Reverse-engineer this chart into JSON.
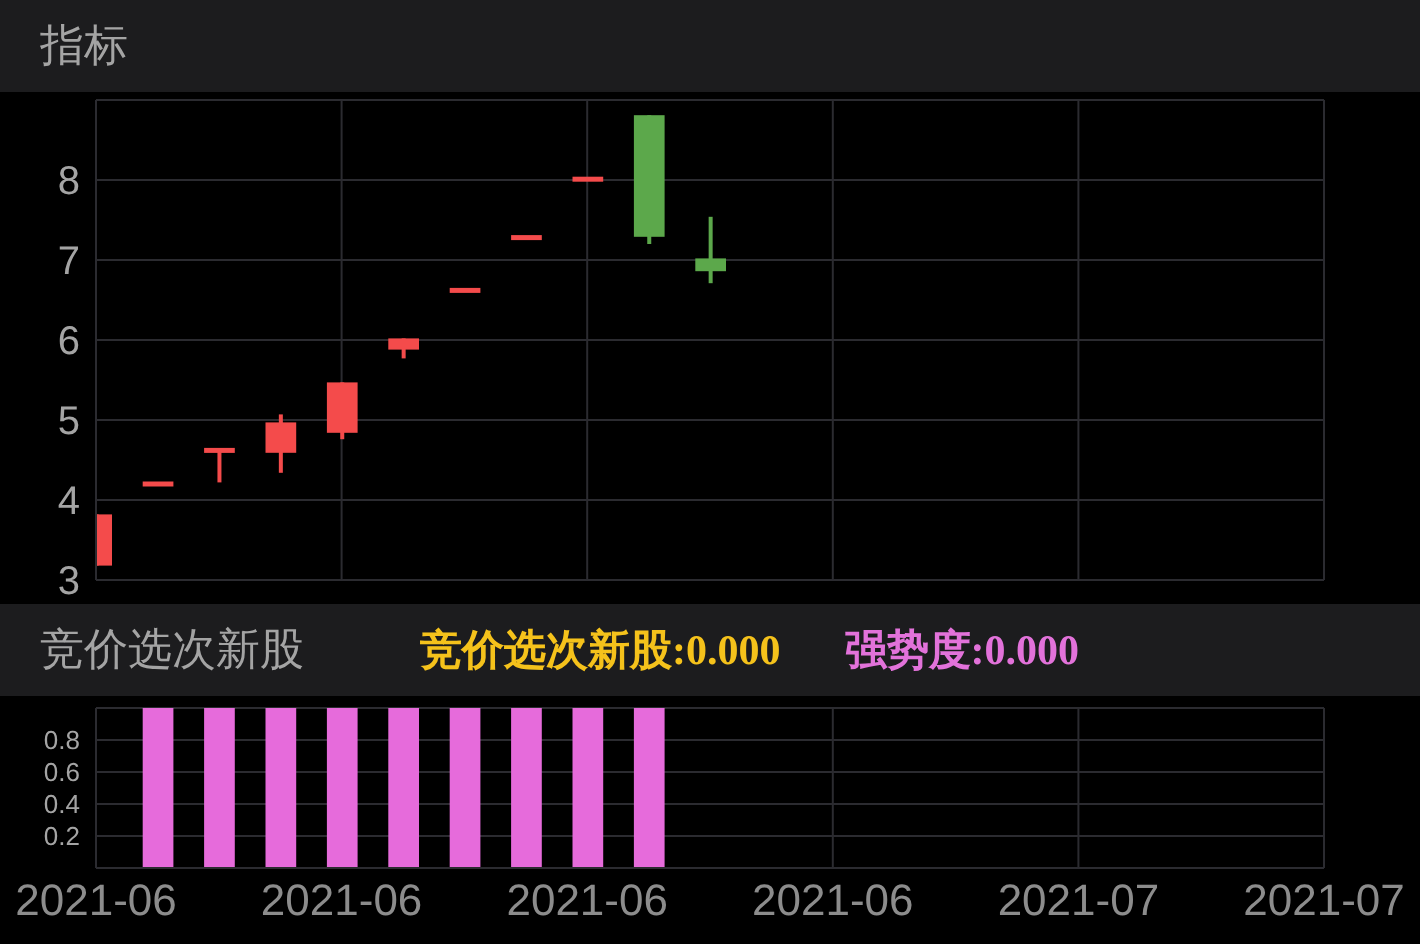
{
  "chart_data": [
    {
      "type": "candlestick",
      "title": "指标",
      "categories": [
        "2021-06",
        null,
        null,
        null,
        "2021-06",
        null,
        null,
        null,
        "2021-06",
        null,
        null,
        null,
        "2021-06",
        null,
        null,
        null,
        "2021-07",
        null,
        null,
        null,
        "2021-07"
      ],
      "ohlc": [
        [
          3.18,
          3.82,
          3.18,
          3.82
        ],
        [
          4.2,
          4.2,
          4.2,
          4.2
        ],
        [
          4.62,
          4.62,
          4.22,
          4.62
        ],
        [
          4.59,
          5.07,
          4.34,
          4.97
        ],
        [
          4.84,
          5.47,
          4.76,
          5.47
        ],
        [
          5.88,
          6.02,
          5.77,
          6.02
        ],
        [
          6.62,
          6.62,
          6.62,
          6.62
        ],
        [
          7.28,
          7.28,
          7.28,
          7.28
        ],
        [
          8.01,
          8.01,
          8.01,
          8.01
        ],
        [
          8.81,
          8.81,
          7.2,
          7.29
        ],
        [
          7.02,
          7.54,
          6.71,
          6.86
        ],
        null,
        null,
        null,
        null,
        null,
        null,
        null,
        null,
        null,
        null
      ],
      "colors": [
        "#f44b4b",
        "#f44b4b",
        "#f44b4b",
        "#f44b4b",
        "#f44b4b",
        "#f44b4b",
        "#f44b4b",
        "#f44b4b",
        "#f44b4b",
        "#5ca84b",
        "#5ca84b",
        null,
        null,
        null,
        null,
        null,
        null,
        null,
        null,
        null,
        null
      ],
      "ylim": [
        3,
        9
      ],
      "yticks": [
        3,
        4,
        5,
        6,
        7,
        8
      ],
      "grid": true,
      "tick_labels": "y"
    },
    {
      "type": "bar",
      "title": "竞价选次新股",
      "annotations": [
        "竞价选次新股:0.000",
        "强势度:0.000"
      ],
      "categories": [
        "2021-06",
        null,
        null,
        null,
        "2021-06",
        null,
        null,
        null,
        "2021-06",
        null,
        null,
        null,
        "2021-06",
        null,
        null,
        null,
        "2021-07",
        null,
        null,
        null,
        "2021-07"
      ],
      "values": [
        null,
        1,
        1,
        1,
        1,
        1,
        1,
        1,
        1,
        1,
        0,
        null,
        null,
        null,
        null,
        null,
        null,
        null,
        null,
        null,
        null
      ],
      "color": "#e66bdb",
      "ylim": [
        0,
        1
      ],
      "yticks": [
        {
          "value": 0,
          "label": null
        },
        0.2,
        0.4,
        0.6,
        0.8,
        {
          "value": 1,
          "label": null
        }
      ],
      "grid": true
    }
  ]
}
